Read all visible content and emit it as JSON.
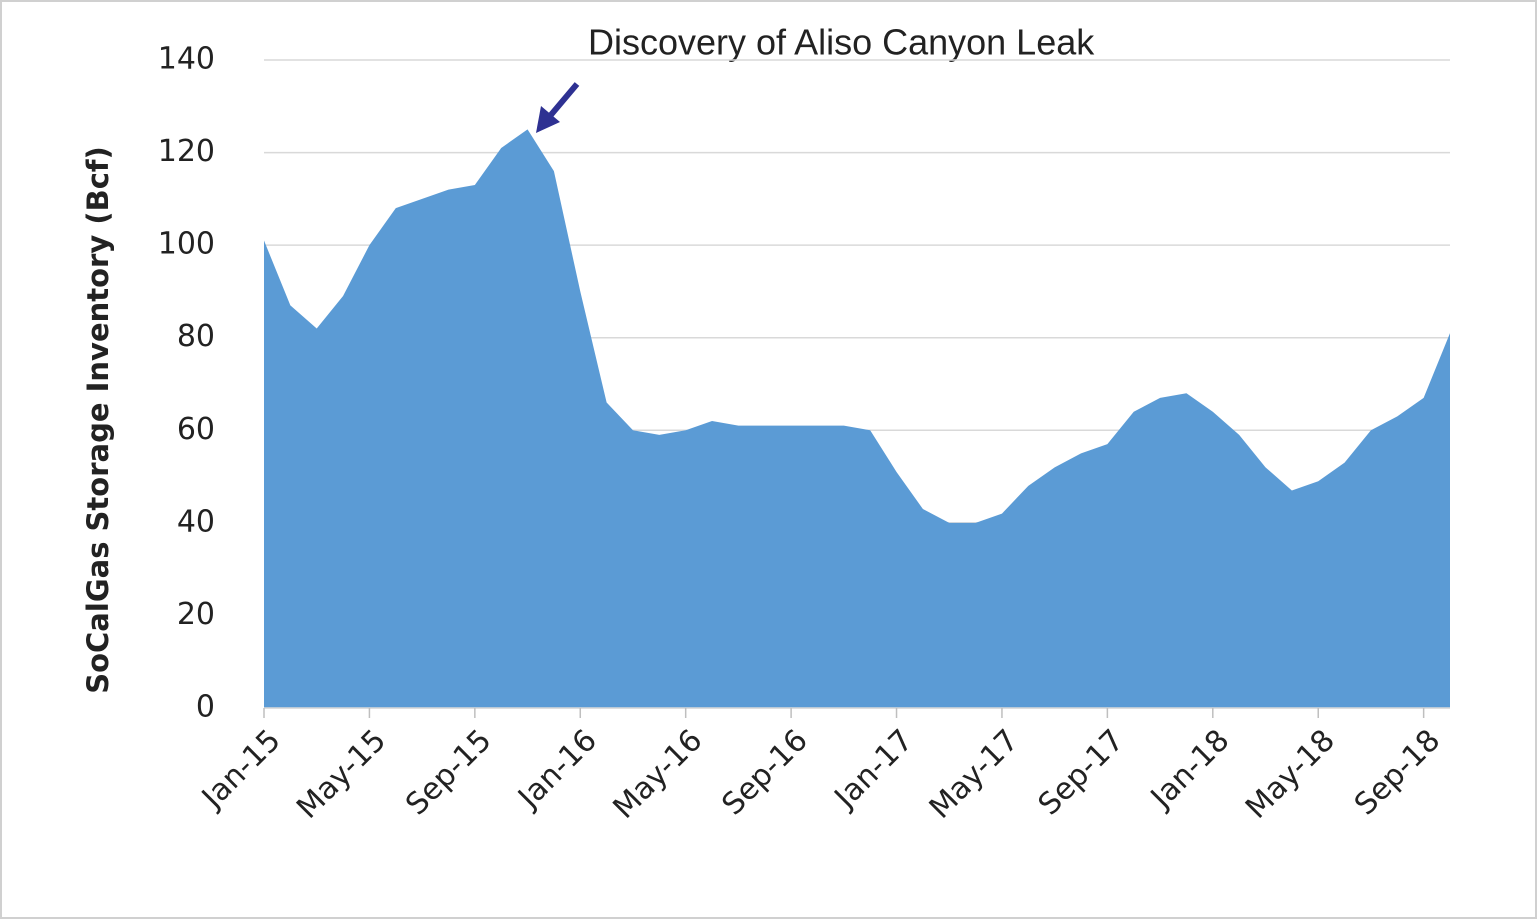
{
  "chart_data": {
    "type": "area",
    "annotation": "Discovery of Aliso Canyon Leak",
    "y_label": "SoCalGas Storage Inventory (Bcf)",
    "categories": [
      "Jan-15",
      null,
      null,
      null,
      "May-15",
      null,
      null,
      null,
      "Sep-15",
      null,
      null,
      null,
      "Jan-16",
      null,
      null,
      null,
      "May-16",
      null,
      null,
      null,
      "Sep-16",
      null,
      null,
      null,
      "Jan-17",
      null,
      null,
      null,
      "May-17",
      null,
      null,
      null,
      "Sep-17",
      null,
      null,
      null,
      "Jan-18",
      null,
      null,
      null,
      "May-18",
      null,
      null,
      null,
      "Sep-18",
      null
    ],
    "values": [
      101,
      87,
      82,
      89,
      100,
      108,
      110,
      112,
      113,
      121,
      125,
      116,
      90,
      66,
      60,
      59,
      60,
      62,
      61,
      61,
      61,
      61,
      61,
      60,
      51,
      43,
      40,
      40,
      42,
      48,
      52,
      55,
      57,
      64,
      67,
      68,
      64,
      59,
      52,
      47,
      49,
      53,
      60,
      63,
      67,
      81
    ],
    "color": "#5b9bd5",
    "ylim": [
      0,
      140
    ],
    "yticks": [
      0,
      20,
      40,
      60,
      80,
      100,
      120,
      140
    ],
    "grid": true
  }
}
